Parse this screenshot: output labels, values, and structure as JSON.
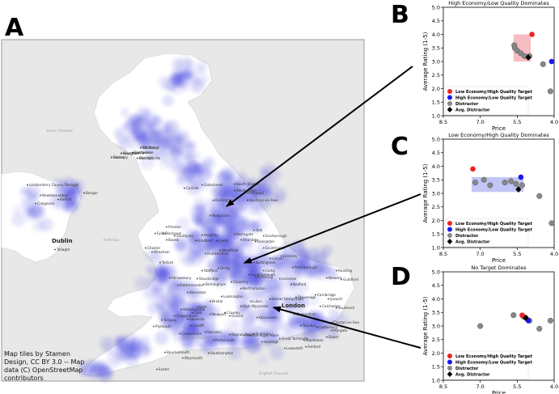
{
  "panel_labels": {
    "a": "A",
    "b": "B",
    "c": "C",
    "d": "D"
  },
  "map": {
    "attribution": [
      "Map tiles by Stamen",
      "Design, CC BY 3.0 -- Map",
      "data (C) OpenStreetMap",
      "contributors"
    ],
    "seas": [
      "Inner Channel",
      "Irish Sea",
      "Bristol Channel",
      "English Channel"
    ],
    "big_cities": [
      "Dublin",
      "London"
    ],
    "places": [
      "Glasgow",
      "Edinburgh",
      "Livingston",
      "East Kilbride",
      "Paisley",
      "Londonderry County Borough",
      "Newtownabbey",
      "Belfast",
      "Bangor",
      "Craigavon",
      "Tallaght",
      "Carlisle",
      "Gateshead",
      "South Shields",
      "Washington",
      "Hartlepool",
      "Stockton-on-Tees",
      "Darlington",
      "Newcastle",
      "Preston",
      "Blackpool",
      "Fylde",
      "Southport",
      "Bootle",
      "Chester",
      "Wrexham",
      "Leeds",
      "Bradford",
      "Keighley",
      "Harrogate",
      "York",
      "Scarborough",
      "Wakefield",
      "Huddersfield",
      "Doncaster",
      "Scunthorpe",
      "Grimsby",
      "Lincoln",
      "Nottingham",
      "Derby",
      "Stafford",
      "Telford",
      "Shrewsbury",
      "Stourbridge",
      "Birmingham",
      "Kidderminster",
      "Worcester",
      "Leamington",
      "Coventry",
      "Loughborough",
      "Leicester",
      "Peterborough",
      "Norwich",
      "Cambridge",
      "Ipswich",
      "Colchester",
      "Stevenage",
      "Bedford",
      "Northampton",
      "Kettering",
      "Corby",
      "Luton",
      "Oxford",
      "High Wycombe",
      "Hemel Hempstead",
      "Chelmsford",
      "Southend",
      "Clacton-on-Sea",
      "Margate",
      "Canterbury",
      "Dover",
      "Ashford",
      "Maidstone",
      "Hastings",
      "Brighton",
      "Bognor Regis",
      "Portsmouth",
      "Southampton",
      "Bournemouth",
      "Weymouth",
      "Exeter",
      "Torquay",
      "Plymouth",
      "Swansea",
      "Cardiff",
      "Newport",
      "Bristol",
      "Bath",
      "Swindon",
      "Cheltenham",
      "Gloucester",
      "Weston-super-Mare",
      "Taunton",
      "Reading",
      "Guildford",
      "Crawley",
      "Waterlooville",
      "Cork",
      "Great Yarmouth",
      "Lowestoft",
      "Chippenham",
      "Rhondda",
      "Keynsham",
      "Worthing",
      "Eastbourne",
      "Merthyr",
      "Barnsley"
    ]
  },
  "charts": {
    "yticks": [
      "1.0",
      "1.5",
      "2.0",
      "2.5",
      "3.0",
      "3.5",
      "4.0",
      "4.5",
      "5.0"
    ],
    "xticks": [
      "8.5",
      "7.0",
      "5.5",
      "4.0"
    ],
    "legend": {
      "low_target": "Low Economy/High Quality Target",
      "high_target": "High Economy/Low Quality Target",
      "distractor": "Distractor",
      "avg_distractor": "Avg. Distractor"
    },
    "colors": {
      "low_target": "#ee2222",
      "high_target": "#1a1aee",
      "distractor": "#888888",
      "avg": "#000000",
      "box_b": "#f2a0a8",
      "box_c": "#a8aef2"
    }
  },
  "chart_data": [
    {
      "type": "scatter",
      "title": "High Economy/Low Quality Dominates",
      "xlabel": "Price",
      "ylabel": "Average Rating (1-5)",
      "xlim": [
        8.5,
        4.0
      ],
      "ylim": [
        1.0,
        5.0
      ],
      "x_axis_reversed": true,
      "highlight_box": {
        "x": [
          5.65,
          4.95
        ],
        "y": [
          3.0,
          4.0
        ]
      },
      "series": [
        {
          "name": "Low Economy/High Quality Target",
          "points": [
            [
              4.9,
              4.0
            ]
          ]
        },
        {
          "name": "High Economy/Low Quality Target",
          "points": [
            [
              4.1,
              3.0
            ]
          ]
        },
        {
          "name": "Distractor",
          "points": [
            [
              5.62,
              3.6
            ],
            [
              5.6,
              3.5
            ],
            [
              5.5,
              3.4
            ],
            [
              5.35,
              3.3
            ],
            [
              5.2,
              3.2
            ],
            [
              5.0,
              3.2
            ],
            [
              4.45,
              2.9
            ],
            [
              4.15,
              1.9
            ]
          ]
        },
        {
          "name": "Avg. Distractor",
          "points": [
            [
              5.05,
              3.15
            ]
          ]
        }
      ]
    },
    {
      "type": "scatter",
      "title": "Low Economy/High Quality Dominates",
      "xlabel": "Price",
      "ylabel": "Average Rating (1-5)",
      "xlim": [
        8.5,
        4.0
      ],
      "ylim": [
        1.0,
        5.0
      ],
      "x_axis_reversed": true,
      "highlight_box": {
        "x": [
          7.35,
          5.25
        ],
        "y": [
          3.05,
          3.6
        ]
      },
      "series": [
        {
          "name": "Low Economy/High Quality Target",
          "points": [
            [
              7.3,
              3.9
            ]
          ]
        },
        {
          "name": "High Economy/Low Quality Target",
          "points": [
            [
              5.35,
              3.6
            ]
          ]
        },
        {
          "name": "Distractor",
          "points": [
            [
              7.2,
              3.4
            ],
            [
              6.85,
              3.5
            ],
            [
              6.6,
              3.3
            ],
            [
              6.0,
              3.4
            ],
            [
              5.75,
              3.45
            ],
            [
              5.55,
              3.35
            ],
            [
              5.3,
              3.3
            ],
            [
              4.6,
              2.9
            ],
            [
              4.1,
              1.9
            ]
          ]
        },
        {
          "name": "Avg. Distractor",
          "points": [
            [
              5.45,
              3.15
            ]
          ]
        }
      ]
    },
    {
      "type": "scatter",
      "title": "No Target Dominates",
      "xlabel": "Price",
      "ylabel": "Average Rating (1-5)",
      "xlim": [
        8.5,
        4.0
      ],
      "ylim": [
        1.0,
        5.0
      ],
      "x_axis_reversed": true,
      "series": [
        {
          "name": "Low Economy/High Quality Target",
          "points": [
            [
              5.3,
              3.4
            ]
          ]
        },
        {
          "name": "High Economy/Low Quality Target",
          "points": [
            [
              5.05,
              3.2
            ]
          ]
        },
        {
          "name": "Distractor",
          "points": [
            [
              7.0,
              3.0
            ],
            [
              5.65,
              3.4
            ],
            [
              5.25,
              3.35
            ],
            [
              5.15,
              3.3
            ],
            [
              5.0,
              3.2
            ],
            [
              4.6,
              2.9
            ],
            [
              4.15,
              3.2
            ]
          ]
        },
        {
          "name": "Avg. Distractor",
          "points": [
            [
              5.15,
              3.3
            ]
          ]
        }
      ]
    }
  ]
}
